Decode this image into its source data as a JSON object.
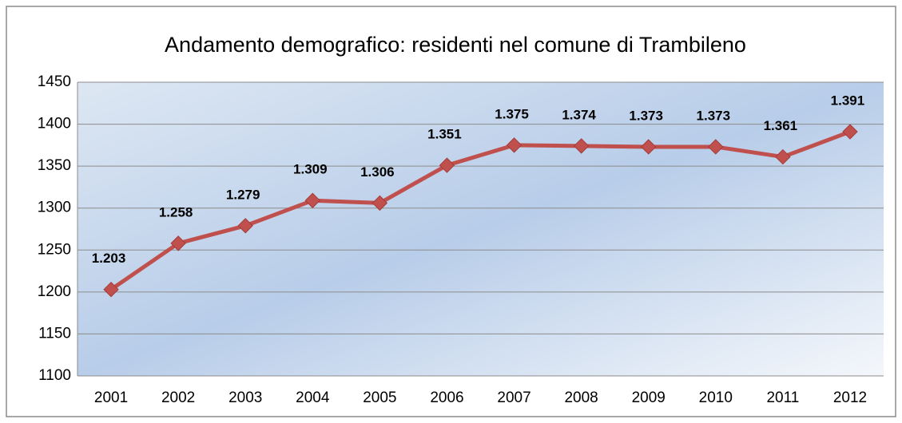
{
  "chart_data": {
    "type": "line",
    "title": "Andamento demografico: residenti nel comune di Trambileno",
    "categories": [
      "2001",
      "2002",
      "2003",
      "2004",
      "2005",
      "2006",
      "2007",
      "2008",
      "2009",
      "2010",
      "2011",
      "2012"
    ],
    "values": [
      1203,
      1258,
      1279,
      1309,
      1306,
      1351,
      1375,
      1374,
      1373,
      1373,
      1361,
      1391
    ],
    "value_labels": [
      "1.203",
      "1.258",
      "1.279",
      "1.309",
      "1.306",
      "1.351",
      "1.375",
      "1.374",
      "1.373",
      "1.373",
      "1.361",
      "1.391"
    ],
    "color": "#c0504d",
    "ylim": [
      1100,
      1450
    ],
    "yticks": [
      1100,
      1150,
      1200,
      1250,
      1300,
      1350,
      1400,
      1450
    ],
    "grid": true
  }
}
